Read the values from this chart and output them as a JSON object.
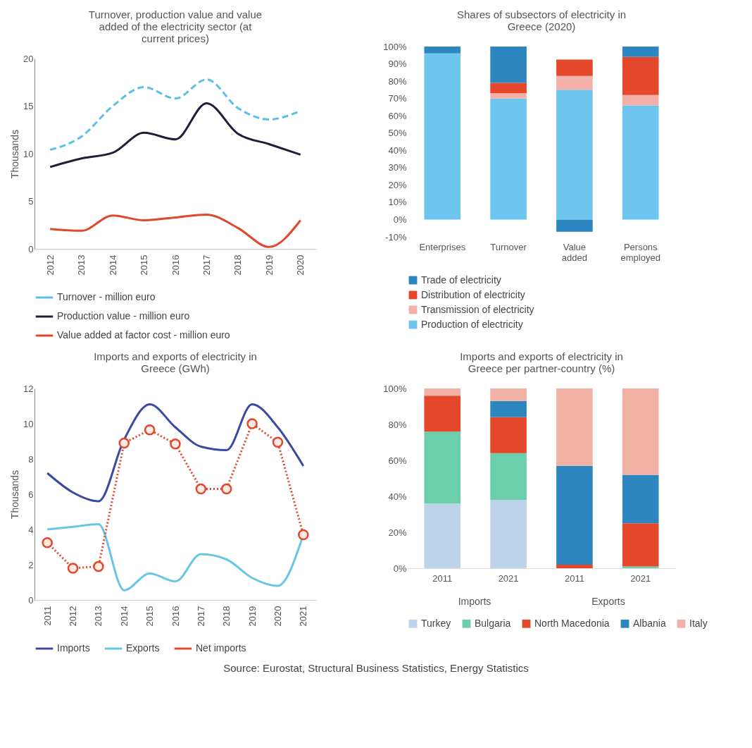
{
  "chart_data": [
    {
      "type": "line",
      "title": "Turnover, production value and value added of the electricity sector (at current prices)",
      "ylabel": "Thousands",
      "categories": [
        "2012",
        "2013",
        "2014",
        "2015",
        "2016",
        "2017",
        "2018",
        "2019",
        "2020"
      ],
      "series": [
        {
          "name": "Turnover - million euro",
          "color": "#5bbfe8",
          "line_style": "dashed",
          "values": [
            10.4,
            11.8,
            15.0,
            17.0,
            15.8,
            17.8,
            14.8,
            13.6,
            14.5
          ]
        },
        {
          "name": "Production value - million euro",
          "color": "#1c1f3a",
          "line_style": "solid",
          "values": [
            8.6,
            9.5,
            10.1,
            12.2,
            11.5,
            15.3,
            12.1,
            11.0,
            9.9
          ]
        },
        {
          "name": "Value added at factor cost - million euro",
          "color": "#e0472b",
          "line_style": "solid",
          "values": [
            2.1,
            1.9,
            3.5,
            3.0,
            3.3,
            3.6,
            2.2,
            0.2,
            3.0
          ]
        }
      ],
      "ylim": [
        0,
        20
      ],
      "yticks": [
        0,
        5,
        10,
        15,
        20
      ],
      "legend": "bottom"
    },
    {
      "type": "bar",
      "stacked": true,
      "title": "Shares of subsectors of electricity in Greece (2020)",
      "categories": [
        "Enterprises",
        "Turnover",
        "Value added",
        "Persons employed"
      ],
      "series": [
        {
          "name": "Production of electricity",
          "color": "#6ec6ee",
          "values": [
            96,
            70,
            75,
            66
          ]
        },
        {
          "name": "Transmission of electricity",
          "color": "#f4b0a8",
          "values": [
            0,
            3,
            8,
            6
          ]
        },
        {
          "name": "Distribution of electricity",
          "color": "#e4472a",
          "values": [
            0,
            6,
            9.5,
            22
          ]
        },
        {
          "name": "Trade of electricity",
          "color": "#2e86c1",
          "values": [
            4,
            21,
            -7,
            6
          ]
        }
      ],
      "ylim": [
        -10,
        100
      ],
      "yticks": [
        {
          "value": -10,
          "label": "-10%"
        },
        {
          "value": 0,
          "label": "0%"
        },
        {
          "value": 10,
          "label": "10%"
        },
        {
          "value": 20,
          "label": "20%"
        },
        {
          "value": 30,
          "label": "30%"
        },
        {
          "value": 40,
          "label": "40%"
        },
        {
          "value": 50,
          "label": "50%"
        },
        {
          "value": 60,
          "label": "60%"
        },
        {
          "value": 70,
          "label": "70%"
        },
        {
          "value": 80,
          "label": "80%"
        },
        {
          "value": 90,
          "label": "90%"
        },
        {
          "value": 100,
          "label": "100%"
        }
      ],
      "legend": "bottom"
    },
    {
      "type": "line",
      "title": "Imports and exports of electricity in Greece (GWh)",
      "ylabel": "Thousands",
      "categories": [
        "2011",
        "2012",
        "2013",
        "2014",
        "2015",
        "2016",
        "2017",
        "2018",
        "2019",
        "2020",
        "2021"
      ],
      "series": [
        {
          "name": "Imports",
          "color": "#3a4aa0",
          "line_style": "solid",
          "values": [
            7.2,
            6.1,
            5.6,
            9.1,
            11.1,
            9.8,
            8.7,
            8.5,
            11.1,
            9.8,
            7.6
          ]
        },
        {
          "name": "Exports",
          "color": "#67c6e6",
          "line_style": "solid",
          "values": [
            4.0,
            4.15,
            4.3,
            0.55,
            1.5,
            1.05,
            2.6,
            2.3,
            1.25,
            0.8,
            3.7
          ]
        },
        {
          "name": "Net imports",
          "color": "#e0472b",
          "line_style": "dotted",
          "marker": "circle",
          "values": [
            3.25,
            1.8,
            1.9,
            8.9,
            9.65,
            8.85,
            6.3,
            6.3,
            10.0,
            8.95,
            3.7
          ]
        }
      ],
      "ylim": [
        0,
        12
      ],
      "yticks": [
        0,
        2,
        4,
        6,
        8,
        10,
        12
      ],
      "legend": "bottom",
      "annotations": [
        "Source: Eurostat, Structural Business Statistics, Energy Statistics"
      ]
    },
    {
      "type": "bar",
      "stacked": true,
      "title": "Imports and exports of electricity in Greece per partner-country (%)",
      "categories": [
        "2011",
        "2021",
        "2011",
        "2021"
      ],
      "series": [
        {
          "name": "Turkey",
          "color": "#bcd3ea",
          "values": [
            36,
            38,
            0,
            0
          ]
        },
        {
          "name": "Bulgaria",
          "color": "#6ccfac",
          "values": [
            40,
            26,
            0,
            1
          ]
        },
        {
          "name": "North Macedonia",
          "color": "#e4472a",
          "values": [
            20,
            20,
            2,
            24
          ]
        },
        {
          "name": "Albania",
          "color": "#2e86c1",
          "values": [
            0,
            9,
            55,
            27
          ]
        },
        {
          "name": "Italy",
          "color": "#f2b1a5",
          "values": [
            4,
            7,
            43,
            48
          ]
        }
      ],
      "ylim": [
        0,
        100
      ],
      "yticks": [
        {
          "value": 0,
          "label": "0%"
        },
        {
          "value": 20,
          "label": "20%"
        },
        {
          "value": 40,
          "label": "40%"
        },
        {
          "value": 60,
          "label": "60%"
        },
        {
          "value": 80,
          "label": "80%"
        },
        {
          "value": 100,
          "label": "100%"
        }
      ],
      "legend": "bottom",
      "annotations": [
        "Imports",
        "Exports"
      ]
    }
  ]
}
